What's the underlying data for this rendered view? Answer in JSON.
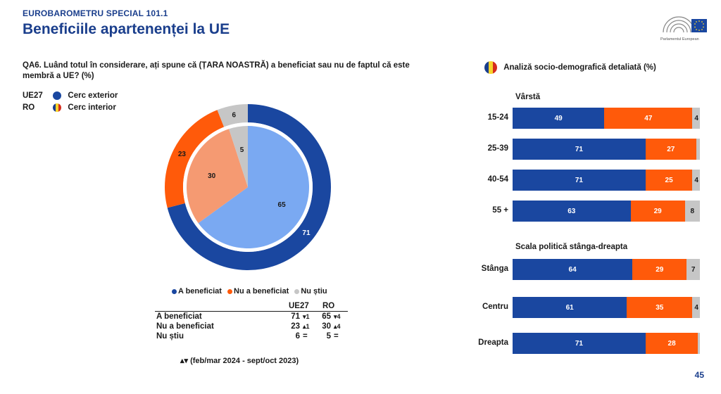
{
  "header": {
    "kicker": "EUROBAROMETRU SPECIAL 101.1",
    "title": "Beneficiile apartenenței la UE"
  },
  "logo": {
    "text": "Parlamentul European"
  },
  "question": "QA6. Luând totul în considerare, ați spune că (ȚARA NOASTRĂ) a beneficiat sau nu de faptul că este membră a UE? (%)",
  "ring_legend": [
    {
      "key": "UE27",
      "label": "Cerc exterior"
    },
    {
      "key": "RO",
      "label": "Cerc interior"
    }
  ],
  "colors": {
    "benefited": "#1a47a0",
    "not_benefited": "#ff5a0a",
    "dont_know": "#c6c6c6",
    "inner_benefited": "#7aa9f2",
    "inner_not_benefited": "#f59a72"
  },
  "donut_legend": [
    "A beneficiat",
    "Nu a beneficiat",
    "Nu știu"
  ],
  "comparison_table": {
    "headers": [
      "UE27",
      "RO"
    ],
    "rows": [
      {
        "label": "A beneficiat",
        "ue27": "71",
        "ue27_change": "▾1",
        "ro": "65",
        "ro_change": "▾4"
      },
      {
        "label": "Nu a beneficiat",
        "ue27": "23",
        "ue27_change": "▴1",
        "ro": "30",
        "ro_change": "▴4"
      },
      {
        "label": "Nu știu",
        "ue27": "6",
        "ue27_change": "=",
        "ro": "5",
        "ro_change": "="
      }
    ]
  },
  "footnote": "▴▾ (feb/mar 2024 - sept/oct 2023)",
  "right_panel": {
    "title": "Analiză socio-demografică detaliată (%)"
  },
  "page_number": "45",
  "chart_data": [
    {
      "type": "pie",
      "subtype": "nested-donut",
      "categories": [
        "A beneficiat",
        "Nu a beneficiat",
        "Nu știu"
      ],
      "series": [
        {
          "name": "UE27",
          "values": [
            71,
            23,
            6
          ]
        },
        {
          "name": "RO",
          "values": [
            65,
            30,
            5
          ]
        }
      ]
    },
    {
      "type": "bar",
      "stacked": true,
      "horizontal": true,
      "title": "Vârstă",
      "categories": [
        "15-24",
        "25-39",
        "40-54",
        "55 +"
      ],
      "series": [
        {
          "name": "A beneficiat",
          "values": [
            49,
            71,
            71,
            63
          ],
          "labels": [
            "49",
            "71",
            "71",
            "63"
          ]
        },
        {
          "name": "Nu a beneficiat",
          "values": [
            47,
            27,
            25,
            29
          ],
          "labels": [
            "47",
            "27",
            "25",
            "29"
          ]
        },
        {
          "name": "Nu știu",
          "values": [
            4,
            2,
            4,
            8
          ],
          "labels": [
            "4",
            "",
            "4",
            "8"
          ]
        }
      ]
    },
    {
      "type": "bar",
      "stacked": true,
      "horizontal": true,
      "title": "Scala politică stânga-dreapta",
      "categories": [
        "Stânga",
        "Centru",
        "Dreapta"
      ],
      "series": [
        {
          "name": "A beneficiat",
          "values": [
            64,
            61,
            71
          ],
          "labels": [
            "64",
            "61",
            "71"
          ]
        },
        {
          "name": "Nu a beneficiat",
          "values": [
            29,
            35,
            28
          ],
          "labels": [
            "29",
            "35",
            "28"
          ]
        },
        {
          "name": "Nu știu",
          "values": [
            7,
            4,
            1
          ],
          "labels": [
            "7",
            "4",
            ""
          ]
        }
      ]
    }
  ]
}
